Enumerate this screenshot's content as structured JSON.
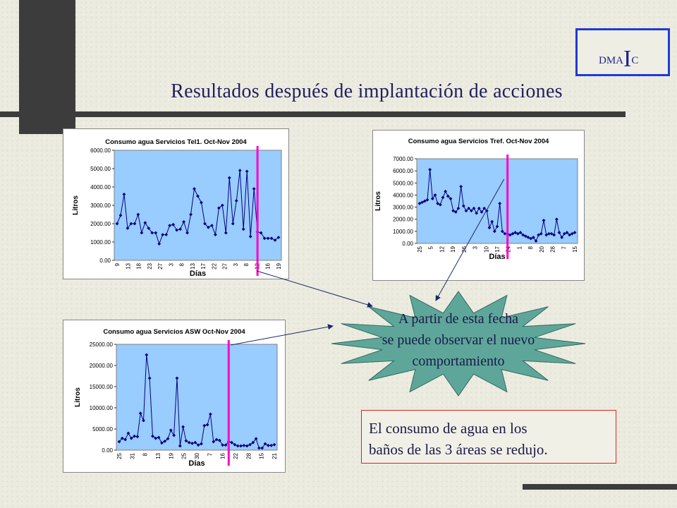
{
  "slide": {
    "title": "Resultados después de implantación de acciones",
    "dmaic": {
      "prefix": "DMA",
      "highlight": "I",
      "suffix": "C"
    },
    "callout": [
      "A partir de esta fecha",
      "se puede observar el nuevo",
      "comportamiento"
    ],
    "conclusion": [
      "El consumo de agua en los",
      "baños de las 3 áreas se redujo."
    ],
    "colors": {
      "background": "#ecebdf",
      "plot_area": "#99ccff",
      "series": "#000080",
      "marker_line": "#ff00cc",
      "star": "#5fa69a",
      "conclusion_border": "#e02020",
      "dmaic_border": "#1f3bd6"
    }
  },
  "chart_data": [
    {
      "type": "line",
      "title": "Consumo agua Servicios Tel1. Oct-Nov 2004",
      "xlabel": "Días",
      "ylabel": "Litros",
      "ylim": [
        0,
        6000
      ],
      "yticks": [
        "0.00",
        "1000.00",
        "2000.00",
        "3000.00",
        "4000.00",
        "5000.00",
        "6000.00"
      ],
      "xtick_labels": [
        "9",
        "13",
        "18",
        "23",
        "27",
        "3",
        "8",
        "13",
        "17",
        "22",
        "27",
        "3",
        "8",
        "12",
        "16",
        "19"
      ],
      "values": [
        2000,
        2450,
        3600,
        1750,
        2000,
        2000,
        2500,
        1500,
        2050,
        1750,
        1500,
        1500,
        900,
        1400,
        1400,
        1900,
        1950,
        1650,
        1700,
        2100,
        1500,
        2500,
        3900,
        3500,
        3150,
        2000,
        1800,
        1900,
        1400,
        2850,
        3000,
        1500,
        4500,
        2000,
        3250,
        4900,
        1700,
        4850,
        1300,
        3900,
        1550,
        1500,
        1200,
        1200,
        1200,
        1100,
        1250
      ],
      "change_index": 40
    },
    {
      "type": "line",
      "title": "Consumo agua Servicios Tref. Oct-Nov 2004",
      "xlabel": "Días",
      "ylabel": "Litros",
      "ylim": [
        0,
        7000
      ],
      "yticks": [
        "0.00",
        "1000.00",
        "2000.00",
        "3000.00",
        "4000.00",
        "5000.00",
        "6000.00",
        "7000.00"
      ],
      "xtick_labels": [
        "25",
        "5",
        "12",
        "19",
        "26",
        "3",
        "10",
        "17",
        "24",
        "1",
        "8",
        "20",
        "28",
        "7",
        "15"
      ],
      "values": [
        3300,
        3400,
        3500,
        3600,
        6100,
        3700,
        4000,
        3300,
        3200,
        3800,
        4300,
        3900,
        3700,
        2700,
        2600,
        2900,
        4700,
        3100,
        2700,
        2900,
        2700,
        2900,
        2500,
        2900,
        2600,
        2900,
        2700,
        1300,
        1800,
        1000,
        1400,
        3300,
        1000,
        800,
        800,
        700,
        800,
        900,
        800,
        900,
        700,
        600,
        500,
        400,
        500,
        200,
        700,
        800,
        1900,
        700,
        800,
        800,
        700,
        2000,
        900,
        500,
        800,
        900,
        700,
        800,
        900
      ],
      "change_index": 34
    },
    {
      "type": "line",
      "title": "Consumo agua Servicios ASW Oct-Nov 2004",
      "xlabel": "Días",
      "ylabel": "Litros",
      "ylim": [
        0,
        25000
      ],
      "yticks": [
        "0.00",
        "5000.00",
        "10000.00",
        "15000.00",
        "20000.00",
        "25000.00"
      ],
      "xtick_labels": [
        "25",
        "31",
        "8",
        "13",
        "19",
        "25",
        "30",
        "7",
        "16",
        "22",
        "28",
        "15",
        "21"
      ],
      "values": [
        2000,
        2800,
        2500,
        4000,
        2800,
        3300,
        3200,
        8700,
        7000,
        22500,
        17000,
        3300,
        2800,
        3000,
        1700,
        2100,
        2700,
        4700,
        3500,
        17000,
        1000,
        5500,
        2200,
        1800,
        1600,
        1800,
        1200,
        1500,
        5800,
        6000,
        8500,
        2000,
        2500,
        2300,
        1200,
        1200,
        2000,
        1800,
        1300,
        1000,
        1000,
        1100,
        1000,
        1300,
        1800,
        2700,
        500,
        500,
        1500,
        1100,
        1100,
        1300
      ],
      "change_index": 36
    }
  ]
}
